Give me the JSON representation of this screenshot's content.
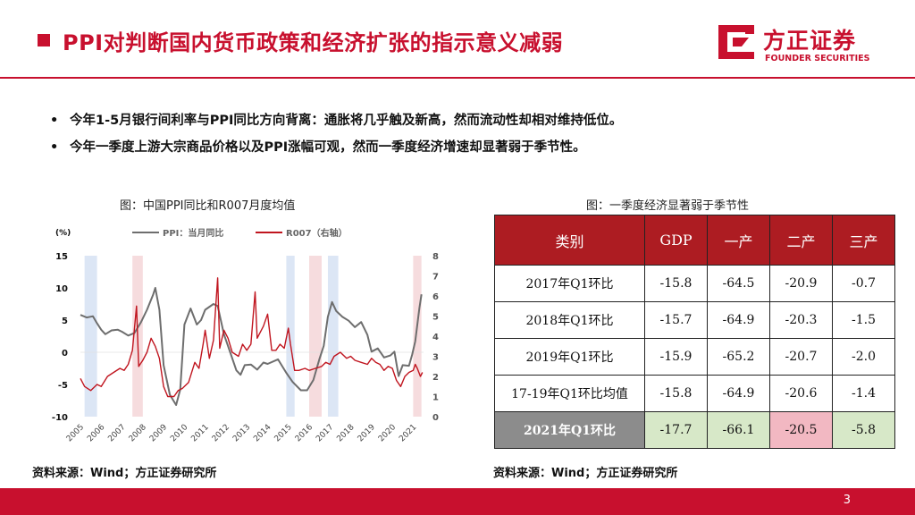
{
  "header": {
    "title": "PPI对判断国内货币政策和经济扩张的指示意义减弱",
    "logo_cn": "方正证券",
    "logo_en": "FOUNDER SECURITIES",
    "accent": "#c8102e"
  },
  "bullets": [
    {
      "dot": "•",
      "text": "今年1-5月银行间利率与PPI同比方向背离：通胀将几乎触及新高，然而流动性却相对维持低位。"
    },
    {
      "dot": "•",
      "text": "今年一季度上游大宗商品价格以及PPI涨幅可观，然而一季度经济增速却显著弱于季节性。"
    }
  ],
  "left_figure": {
    "caption": "图：中国PPI同比和R007月度均值",
    "source": "资料来源：Wind；方正证券研究所"
  },
  "right_figure": {
    "caption": "图：一季度经济显著弱于季节性",
    "source": "资料来源：Wind；方正证券研究所"
  },
  "chart_data": {
    "type": "line",
    "y_unit": "(%)",
    "x_labels": [
      "2005",
      "2006",
      "2007",
      "2008",
      "2009",
      "2010",
      "2011",
      "2012",
      "2013",
      "2014",
      "2015",
      "2016",
      "2017",
      "2018",
      "2019",
      "2020",
      "2021"
    ],
    "x_range": [
      2005,
      2021.5
    ],
    "ylim_left": [
      -10,
      15
    ],
    "left_ticks": [
      15,
      10,
      5,
      0,
      -5,
      -10
    ],
    "ylim_right": [
      0,
      8
    ],
    "right_ticks": [
      8,
      7,
      6,
      5,
      4,
      3,
      2,
      1,
      0
    ],
    "shaded_periods": [
      {
        "from": 2005.2,
        "to": 2005.8,
        "color": "blue"
      },
      {
        "from": 2007.5,
        "to": 2008.0,
        "color": "pink"
      },
      {
        "from": 2014.9,
        "to": 2015.3,
        "color": "blue"
      },
      {
        "from": 2016.0,
        "to": 2016.6,
        "color": "pink"
      },
      {
        "from": 2016.9,
        "to": 2017.4,
        "color": "blue"
      },
      {
        "from": 2021.0,
        "to": 2021.4,
        "color": "pink"
      }
    ],
    "series": [
      {
        "name": "PPI：当月同比",
        "axis": "left",
        "color": "#6e6e6e",
        "points": [
          [
            2005,
            5.8
          ],
          [
            2005.3,
            5.4
          ],
          [
            2005.6,
            5.6
          ],
          [
            2005.8,
            4.5
          ],
          [
            2006.0,
            3.5
          ],
          [
            2006.2,
            2.8
          ],
          [
            2006.5,
            3.4
          ],
          [
            2006.8,
            3.5
          ],
          [
            2007.0,
            3.2
          ],
          [
            2007.3,
            2.6
          ],
          [
            2007.6,
            3.0
          ],
          [
            2007.9,
            4.6
          ],
          [
            2008.2,
            6.6
          ],
          [
            2008.5,
            9.0
          ],
          [
            2008.6,
            10.0
          ],
          [
            2008.8,
            6.6
          ],
          [
            2009.0,
            -2.0
          ],
          [
            2009.3,
            -6.6
          ],
          [
            2009.6,
            -8.2
          ],
          [
            2009.8,
            -5.8
          ],
          [
            2010.0,
            4.3
          ],
          [
            2010.3,
            6.8
          ],
          [
            2010.6,
            4.3
          ],
          [
            2010.8,
            5.0
          ],
          [
            2011.0,
            6.6
          ],
          [
            2011.4,
            7.5
          ],
          [
            2011.6,
            7.2
          ],
          [
            2011.9,
            2.8
          ],
          [
            2012.2,
            0.0
          ],
          [
            2012.5,
            -2.8
          ],
          [
            2012.7,
            -3.5
          ],
          [
            2012.9,
            -2.0
          ],
          [
            2013.2,
            -1.9
          ],
          [
            2013.5,
            -2.7
          ],
          [
            2013.8,
            -1.6
          ],
          [
            2014.0,
            -1.8
          ],
          [
            2014.5,
            -1.1
          ],
          [
            2014.9,
            -3.2
          ],
          [
            2015.2,
            -4.6
          ],
          [
            2015.6,
            -5.9
          ],
          [
            2015.9,
            -5.9
          ],
          [
            2016.2,
            -4.3
          ],
          [
            2016.5,
            -1.0
          ],
          [
            2016.7,
            1.0
          ],
          [
            2016.9,
            5.5
          ],
          [
            2017.1,
            7.8
          ],
          [
            2017.3,
            6.4
          ],
          [
            2017.6,
            5.5
          ],
          [
            2017.9,
            4.9
          ],
          [
            2018.2,
            3.9
          ],
          [
            2018.5,
            4.7
          ],
          [
            2018.8,
            2.7
          ],
          [
            2019.0,
            0.1
          ],
          [
            2019.3,
            0.6
          ],
          [
            2019.6,
            -0.8
          ],
          [
            2019.9,
            -0.5
          ],
          [
            2020.1,
            0.1
          ],
          [
            2020.3,
            -3.7
          ],
          [
            2020.5,
            -2.0
          ],
          [
            2020.8,
            -2.1
          ],
          [
            2020.95,
            -0.4
          ],
          [
            2021.1,
            1.7
          ],
          [
            2021.3,
            6.8
          ],
          [
            2021.4,
            9.0
          ]
        ]
      },
      {
        "name": "R007（右轴）",
        "axis": "right",
        "color": "#c0151f",
        "points": [
          [
            2005,
            1.9
          ],
          [
            2005.2,
            1.5
          ],
          [
            2005.5,
            1.3
          ],
          [
            2005.8,
            1.6
          ],
          [
            2006.0,
            1.5
          ],
          [
            2006.3,
            2.0
          ],
          [
            2006.6,
            2.2
          ],
          [
            2006.9,
            2.4
          ],
          [
            2007.1,
            2.3
          ],
          [
            2007.3,
            2.6
          ],
          [
            2007.5,
            3.3
          ],
          [
            2007.7,
            5.5
          ],
          [
            2007.8,
            2.5
          ],
          [
            2008.0,
            2.8
          ],
          [
            2008.2,
            3.2
          ],
          [
            2008.4,
            3.9
          ],
          [
            2008.6,
            3.5
          ],
          [
            2008.8,
            2.9
          ],
          [
            2009.0,
            1.5
          ],
          [
            2009.2,
            1.0
          ],
          [
            2009.5,
            1.0
          ],
          [
            2009.7,
            1.3
          ],
          [
            2009.9,
            1.4
          ],
          [
            2010.2,
            1.7
          ],
          [
            2010.5,
            2.7
          ],
          [
            2010.7,
            2.4
          ],
          [
            2010.9,
            3.6
          ],
          [
            2011.0,
            4.3
          ],
          [
            2011.2,
            2.9
          ],
          [
            2011.4,
            3.8
          ],
          [
            2011.6,
            6.9
          ],
          [
            2011.7,
            3.4
          ],
          [
            2011.9,
            4.3
          ],
          [
            2012.1,
            3.9
          ],
          [
            2012.3,
            3.2
          ],
          [
            2012.6,
            3.0
          ],
          [
            2012.8,
            3.6
          ],
          [
            2013.0,
            3.3
          ],
          [
            2013.2,
            3.6
          ],
          [
            2013.4,
            6.2
          ],
          [
            2013.5,
            3.9
          ],
          [
            2013.8,
            4.5
          ],
          [
            2014.0,
            5.1
          ],
          [
            2014.2,
            3.3
          ],
          [
            2014.4,
            3.3
          ],
          [
            2014.6,
            3.6
          ],
          [
            2014.8,
            3.4
          ],
          [
            2015.0,
            4.4
          ],
          [
            2015.1,
            3.6
          ],
          [
            2015.3,
            2.3
          ],
          [
            2015.5,
            2.3
          ],
          [
            2015.8,
            2.4
          ],
          [
            2016.0,
            2.3
          ],
          [
            2016.3,
            2.4
          ],
          [
            2016.6,
            2.5
          ],
          [
            2016.8,
            2.7
          ],
          [
            2017.0,
            2.6
          ],
          [
            2017.2,
            3.0
          ],
          [
            2017.5,
            3.2
          ],
          [
            2017.8,
            2.9
          ],
          [
            2018.0,
            3.0
          ],
          [
            2018.2,
            2.8
          ],
          [
            2018.5,
            2.7
          ],
          [
            2018.8,
            2.6
          ],
          [
            2019.0,
            2.9
          ],
          [
            2019.2,
            2.7
          ],
          [
            2019.4,
            2.6
          ],
          [
            2019.6,
            2.3
          ],
          [
            2019.8,
            2.5
          ],
          [
            2020.0,
            2.4
          ],
          [
            2020.2,
            1.8
          ],
          [
            2020.4,
            1.5
          ],
          [
            2020.6,
            2.0
          ],
          [
            2020.8,
            2.2
          ],
          [
            2021.0,
            2.3
          ],
          [
            2021.1,
            2.6
          ],
          [
            2021.2,
            2.4
          ],
          [
            2021.35,
            2.0
          ],
          [
            2021.45,
            2.2
          ]
        ]
      }
    ]
  },
  "table": {
    "header": [
      "类别",
      "GDP",
      "一产",
      "二产",
      "三产"
    ],
    "rows": [
      [
        "2017年Q1环比",
        "-15.8",
        "-64.5",
        "-20.9",
        "-0.7"
      ],
      [
        "2018年Q1环比",
        "-15.7",
        "-64.9",
        "-20.3",
        "-1.5"
      ],
      [
        "2019年Q1环比",
        "-15.9",
        "-65.2",
        "-20.7",
        "-2.0"
      ],
      [
        "17-19年Q1环比均值",
        "-15.8",
        "-64.9",
        "-20.6",
        "-1.4"
      ],
      [
        "2021年Q1环比",
        "-17.7",
        "-66.1",
        "-20.5",
        "-5.8"
      ]
    ]
  },
  "footer": {
    "page_number": "3"
  }
}
